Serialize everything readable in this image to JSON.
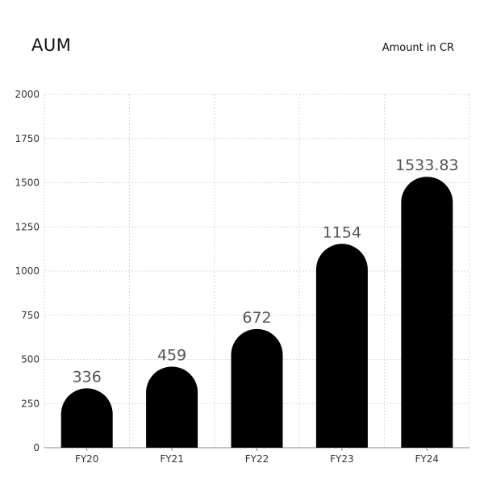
{
  "header": {
    "title": "AUM",
    "unit_note": "Amount in CR"
  },
  "chart_data": {
    "type": "bar",
    "title": "AUM",
    "subtitle": "Amount in CR",
    "xlabel": "",
    "ylabel": "",
    "categories": [
      "FY20",
      "FY21",
      "FY22",
      "FY23",
      "FY24"
    ],
    "values": [
      336,
      459,
      672,
      1154,
      1533.83
    ],
    "data_labels": [
      "336",
      "459",
      "672",
      "1154",
      "1533.83"
    ],
    "ylim": [
      0,
      2000
    ],
    "yticks": [
      0,
      250,
      500,
      750,
      1000,
      1250,
      1500,
      1750,
      2000
    ],
    "grid": true,
    "legend": "none",
    "bar_color": "#000000",
    "grid_color": "#d9d9d9",
    "label_color": "#555555"
  }
}
